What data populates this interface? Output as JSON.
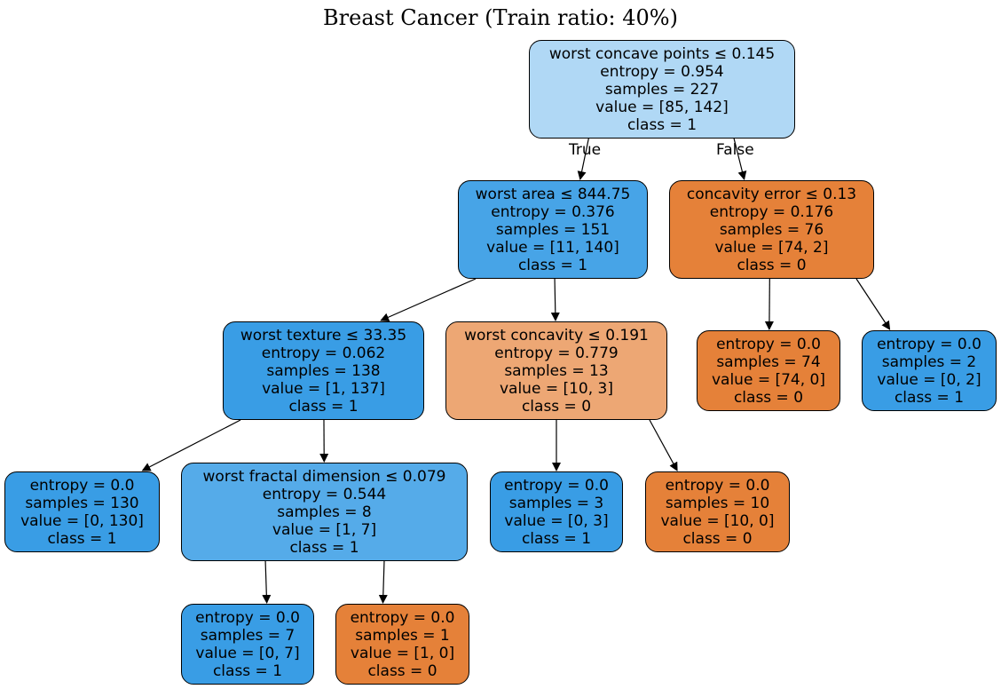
{
  "title": "Breast Cancer (Train ratio: 40%)",
  "colors": {
    "class0_strong": "#e58139",
    "class0_light": "#eda774",
    "class1_strong": "#399de5",
    "class1_mid": "#47a4e7",
    "class1_soft": "#55abe9",
    "class1_light": "#b0d8f5",
    "edge": "#000000"
  },
  "edge_labels": {
    "true_label": "True",
    "false_label": "False"
  },
  "nodes": [
    {
      "id": "n0",
      "lines": [
        "worst concave points ≤ 0.145",
        "entropy = 0.954",
        "samples = 227",
        "value = [85, 142]",
        "class = 1"
      ],
      "color": "#b0d8f5"
    },
    {
      "id": "n1",
      "lines": [
        "worst area ≤ 844.75",
        "entropy = 0.376",
        "samples = 151",
        "value = [11, 140]",
        "class = 1"
      ],
      "color": "#47a4e7"
    },
    {
      "id": "n2",
      "lines": [
        "concavity error ≤ 0.13",
        "entropy = 0.176",
        "samples = 76",
        "value = [74, 2]",
        "class = 0"
      ],
      "color": "#e58139"
    },
    {
      "id": "n3",
      "lines": [
        "worst texture ≤ 33.35",
        "entropy = 0.062",
        "samples = 138",
        "value = [1, 137]",
        "class = 1"
      ],
      "color": "#399de5"
    },
    {
      "id": "n4",
      "lines": [
        "worst concavity ≤ 0.191",
        "entropy = 0.779",
        "samples = 13",
        "value = [10, 3]",
        "class = 0"
      ],
      "color": "#eda774"
    },
    {
      "id": "n5",
      "lines": [
        "entropy = 0.0",
        "samples = 74",
        "value = [74, 0]",
        "class = 0"
      ],
      "color": "#e58139"
    },
    {
      "id": "n6",
      "lines": [
        "entropy = 0.0",
        "samples = 2",
        "value = [0, 2]",
        "class = 1"
      ],
      "color": "#399de5"
    },
    {
      "id": "n7",
      "lines": [
        "entropy = 0.0",
        "samples = 130",
        "value = [0, 130]",
        "class = 1"
      ],
      "color": "#399de5"
    },
    {
      "id": "n8",
      "lines": [
        "worst fractal dimension ≤ 0.079",
        "entropy = 0.544",
        "samples = 8",
        "value = [1, 7]",
        "class = 1"
      ],
      "color": "#55abe9"
    },
    {
      "id": "n9",
      "lines": [
        "entropy = 0.0",
        "samples = 3",
        "value = [0, 3]",
        "class = 1"
      ],
      "color": "#399de5"
    },
    {
      "id": "n10",
      "lines": [
        "entropy = 0.0",
        "samples = 10",
        "value = [10, 0]",
        "class = 0"
      ],
      "color": "#e58139"
    },
    {
      "id": "n11",
      "lines": [
        "entropy = 0.0",
        "samples = 7",
        "value = [0, 7]",
        "class = 1"
      ],
      "color": "#399de5"
    },
    {
      "id": "n12",
      "lines": [
        "entropy = 0.0",
        "samples = 1",
        "value = [1, 0]",
        "class = 0"
      ],
      "color": "#e58139"
    }
  ],
  "edges": [
    [
      "n0",
      "n1"
    ],
    [
      "n0",
      "n2"
    ],
    [
      "n1",
      "n3"
    ],
    [
      "n1",
      "n4"
    ],
    [
      "n2",
      "n5"
    ],
    [
      "n2",
      "n6"
    ],
    [
      "n3",
      "n7"
    ],
    [
      "n3",
      "n8"
    ],
    [
      "n4",
      "n9"
    ],
    [
      "n4",
      "n10"
    ],
    [
      "n8",
      "n11"
    ],
    [
      "n8",
      "n12"
    ]
  ]
}
